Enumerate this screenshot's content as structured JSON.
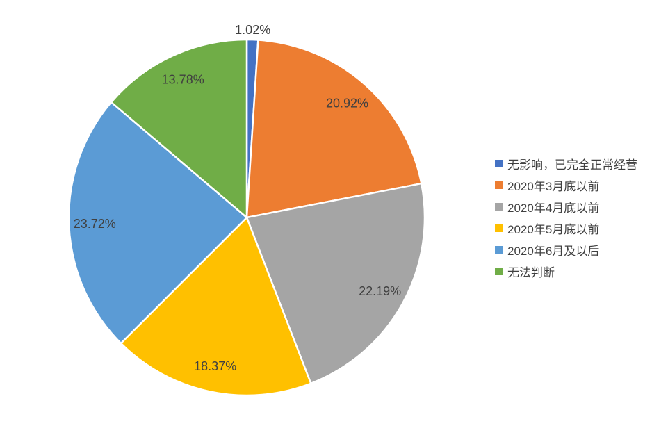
{
  "chart_data": {
    "type": "pie",
    "title": "",
    "legend_position": "right",
    "start_angle_deg": 0,
    "direction": "clockwise",
    "slice_border_color": "#ffffff",
    "label_color": "#404040",
    "legend_text_color": "#404040",
    "background_color": "#ffffff",
    "slices": [
      {
        "label": "无影响，已完全正常经营",
        "value": 1.02,
        "display": "1.02%",
        "color": "#4472C4",
        "label_placement": "outside"
      },
      {
        "label": "2020年3月底以前",
        "value": 20.92,
        "display": "20.92%",
        "color": "#ED7D31",
        "label_placement": "inside"
      },
      {
        "label": "2020年4月底以前",
        "value": 22.19,
        "display": "22.19%",
        "color": "#A5A5A5",
        "label_placement": "inside"
      },
      {
        "label": "2020年5月底以前",
        "value": 18.37,
        "display": "18.37%",
        "color": "#FFC000",
        "label_placement": "inside"
      },
      {
        "label": "2020年6月及以后",
        "value": 23.72,
        "display": "23.72%",
        "color": "#5B9BD5",
        "label_placement": "inside"
      },
      {
        "label": "无法判断",
        "value": 13.78,
        "display": "13.78%",
        "color": "#70AD47",
        "label_placement": "inside"
      }
    ]
  }
}
